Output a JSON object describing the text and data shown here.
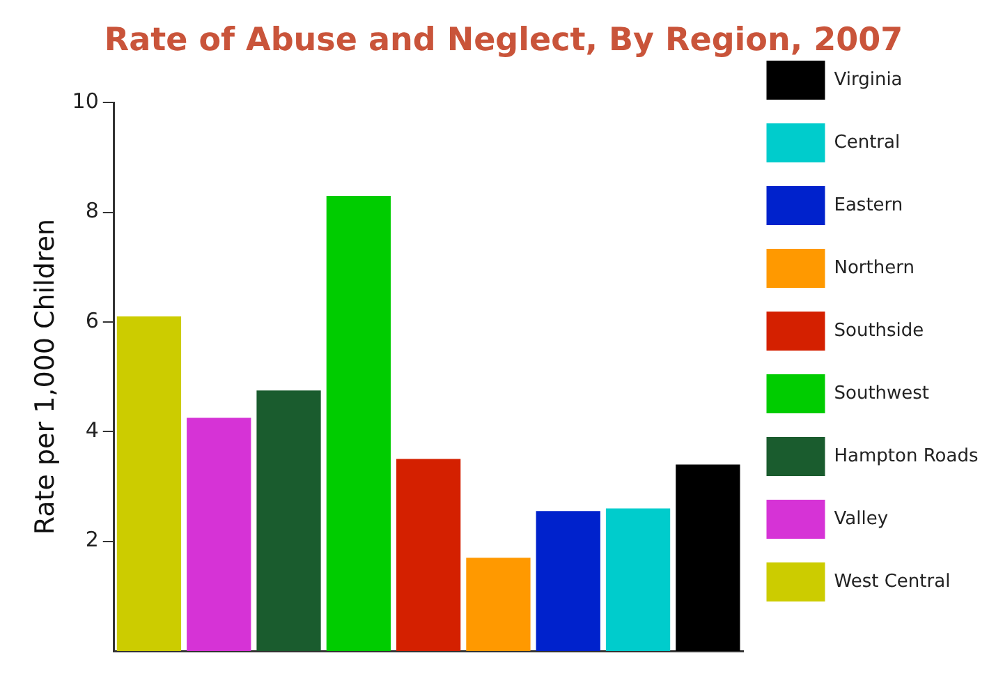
{
  "chart_data": {
    "type": "bar",
    "title": "Rate of Abuse and Neglect, By Region, 2007",
    "ylabel": "Rate per 1,000 Children",
    "categories": [
      null,
      null,
      null,
      null,
      null,
      null,
      null,
      null,
      null
    ],
    "series": [
      {
        "name": "West Central",
        "color": "#cccc00",
        "values": [
          6.1,
          null,
          null,
          null,
          null,
          null,
          null,
          null,
          null
        ]
      },
      {
        "name": "Valley",
        "color": "#d633d6",
        "values": [
          null,
          4.25,
          null,
          null,
          null,
          null,
          null,
          null,
          null
        ]
      },
      {
        "name": "Hampton Roads",
        "color": "#1a5c2e",
        "values": [
          null,
          null,
          4.75,
          null,
          null,
          null,
          null,
          null,
          null
        ]
      },
      {
        "name": "Southwest",
        "color": "#00cc00",
        "values": [
          null,
          null,
          null,
          8.3,
          null,
          null,
          null,
          null,
          null
        ]
      },
      {
        "name": "Southside",
        "color": "#d42000",
        "values": [
          null,
          null,
          null,
          null,
          3.5,
          null,
          null,
          null,
          null
        ]
      },
      {
        "name": "Northern",
        "color": "#ff9900",
        "values": [
          null,
          null,
          null,
          null,
          null,
          1.7,
          null,
          null,
          null
        ]
      },
      {
        "name": "Eastern",
        "color": "#0022cc",
        "values": [
          null,
          null,
          null,
          null,
          null,
          null,
          2.55,
          null,
          null
        ]
      },
      {
        "name": "Central",
        "color": "#00cccc",
        "values": [
          null,
          null,
          null,
          null,
          null,
          null,
          null,
          2.6,
          null
        ]
      },
      {
        "name": "Virginia",
        "color": "#000000",
        "values": [
          null,
          null,
          null,
          null,
          null,
          null,
          null,
          null,
          3.4
        ]
      }
    ],
    "ylim": [
      0,
      10
    ],
    "yticks": [
      2,
      4,
      6,
      8,
      10
    ],
    "grid": false,
    "legend": "right",
    "tick_labels": "y"
  }
}
